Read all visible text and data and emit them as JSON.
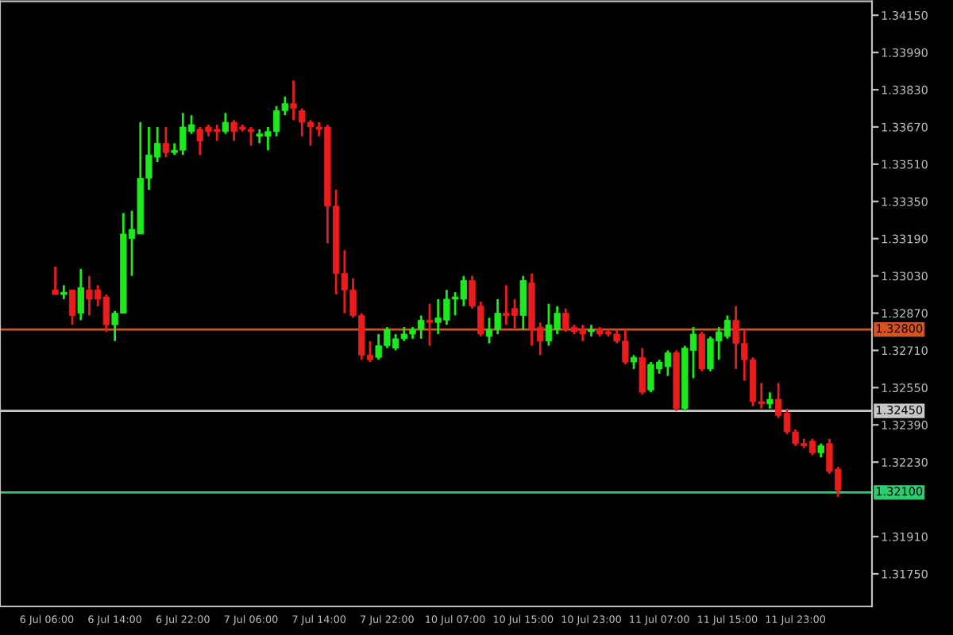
{
  "chart_data": {
    "type": "candlestick",
    "categories": [
      "6 Jul 06:00",
      null,
      null,
      null,
      null,
      null,
      null,
      null,
      "6 Jul 14:00",
      null,
      null,
      null,
      null,
      null,
      null,
      null,
      "6 Jul 22:00",
      null,
      null,
      null,
      null,
      null,
      null,
      null,
      "7 Jul 06:00",
      null,
      null,
      null,
      null,
      null,
      null,
      null,
      "7 Jul 14:00",
      null,
      null,
      null,
      null,
      null,
      null,
      null,
      "7 Jul 22:00",
      null,
      null,
      null,
      null,
      null,
      null,
      null,
      "10 Jul 07:00",
      null,
      null,
      null,
      null,
      null,
      null,
      null,
      "10 Jul 15:00",
      null,
      null,
      null,
      null,
      null,
      null,
      null,
      "10 Jul 23:00",
      null,
      null,
      null,
      null,
      null,
      null,
      null,
      "11 Jul 07:00",
      null,
      null,
      null,
      null,
      null,
      null,
      null,
      "11 Jul 15:00",
      null,
      null,
      null,
      null,
      null,
      null,
      null,
      "11 Jul 23:00",
      null,
      null,
      null,
      null,
      null
    ],
    "ohlc": [
      null,
      [
        1.3297,
        1.3307,
        1.3295,
        1.3295
      ],
      [
        1.3295,
        1.3299,
        1.3293,
        1.3296
      ],
      [
        1.3297,
        1.3297,
        1.3282,
        1.3286
      ],
      [
        1.3287,
        1.3306,
        1.3284,
        1.3298
      ],
      [
        1.3297,
        1.3303,
        1.3286,
        1.3293
      ],
      [
        1.3297,
        1.3299,
        1.329,
        1.3293
      ],
      [
        1.3294,
        1.3295,
        1.3279,
        1.3282
      ],
      [
        1.3282,
        1.3288,
        1.3275,
        1.3287
      ],
      [
        1.3287,
        1.333,
        1.3287,
        1.3321
      ],
      [
        1.3319,
        1.3331,
        1.3303,
        1.3323
      ],
      [
        1.3321,
        1.3369,
        1.3321,
        1.3345
      ],
      [
        1.3345,
        1.3367,
        1.334,
        1.3355
      ],
      [
        1.3354,
        1.3367,
        1.3352,
        1.336
      ],
      [
        1.336,
        1.3367,
        1.3354,
        1.3356
      ],
      [
        1.3356,
        1.336,
        1.3355,
        1.3357
      ],
      [
        1.3357,
        1.3373,
        1.3355,
        1.3367
      ],
      [
        1.3365,
        1.3372,
        1.3364,
        1.3368
      ],
      [
        1.3366,
        1.3367,
        1.3355,
        1.3361
      ],
      [
        1.3367,
        1.3368,
        1.3363,
        1.3365
      ],
      [
        1.3366,
        1.3368,
        1.3361,
        1.3365
      ],
      [
        1.3365,
        1.3373,
        1.3364,
        1.3369
      ],
      [
        1.3369,
        1.337,
        1.3361,
        1.3365
      ],
      [
        1.3367,
        1.3368,
        1.3365,
        1.3366
      ],
      [
        1.3366,
        1.3367,
        1.3359,
        1.3365
      ],
      [
        1.3363,
        1.3366,
        1.336,
        1.3364
      ],
      [
        1.3363,
        1.3367,
        1.3357,
        1.3365
      ],
      [
        1.3365,
        1.3376,
        1.3363,
        1.3374
      ],
      [
        1.3374,
        1.338,
        1.3372,
        1.3377
      ],
      [
        1.3377,
        1.3387,
        1.337,
        1.3375
      ],
      [
        1.3374,
        1.3375,
        1.3363,
        1.3369
      ],
      [
        1.3369,
        1.337,
        1.3359,
        1.3367
      ],
      [
        1.3367,
        1.3369,
        1.3363,
        1.3366
      ],
      [
        1.3367,
        1.3368,
        1.3317,
        1.3333
      ],
      [
        1.3333,
        1.334,
        1.3295,
        1.3304
      ],
      [
        1.3304,
        1.3314,
        1.3287,
        1.3297
      ],
      [
        1.3297,
        1.3302,
        1.3285,
        1.3286
      ],
      [
        1.3286,
        1.3287,
        1.3267,
        1.3269
      ],
      [
        1.3269,
        1.3275,
        1.3266,
        1.3267
      ],
      [
        1.3268,
        1.3278,
        1.3267,
        1.3273
      ],
      [
        1.3273,
        1.3281,
        1.3272,
        1.328
      ],
      [
        1.3272,
        1.3278,
        1.3271,
        1.3276
      ],
      [
        1.3276,
        1.3281,
        1.3275,
        1.3278
      ],
      [
        1.3278,
        1.3281,
        1.3276,
        1.328
      ],
      [
        1.328,
        1.3286,
        1.3276,
        1.3284
      ],
      [
        1.3284,
        1.3291,
        1.3273,
        1.3283
      ],
      [
        1.3283,
        1.3293,
        1.3278,
        1.3285
      ],
      [
        1.3284,
        1.3297,
        1.3282,
        1.3293
      ],
      [
        1.3293,
        1.3296,
        1.3286,
        1.3294
      ],
      [
        1.3293,
        1.3303,
        1.329,
        1.3301
      ],
      [
        1.3301,
        1.3303,
        1.3289,
        1.329
      ],
      [
        1.329,
        1.3292,
        1.3277,
        1.3278
      ],
      [
        1.3277,
        1.3285,
        1.3274,
        1.328
      ],
      [
        1.328,
        1.3293,
        1.3278,
        1.3287
      ],
      [
        1.3287,
        1.3299,
        1.3282,
        1.3286
      ],
      [
        1.3289,
        1.3293,
        1.328,
        1.3286
      ],
      [
        1.3286,
        1.3303,
        1.328,
        1.3301
      ],
      [
        1.33,
        1.3304,
        1.3273,
        1.328
      ],
      [
        1.3281,
        1.3283,
        1.3269,
        1.3275
      ],
      [
        1.3275,
        1.3291,
        1.3273,
        1.3282
      ],
      [
        1.328,
        1.329,
        1.3278,
        1.3287
      ],
      [
        1.3287,
        1.3289,
        1.3279,
        1.328
      ],
      [
        1.3281,
        1.3282,
        1.3278,
        1.3279
      ],
      [
        1.328,
        1.3282,
        1.3275,
        1.3278
      ],
      [
        1.3279,
        1.3282,
        1.3277,
        1.328
      ],
      [
        1.328,
        1.3281,
        1.3277,
        1.3278
      ],
      [
        1.3279,
        1.328,
        1.3277,
        1.3278
      ],
      [
        1.3278,
        1.328,
        1.3274,
        1.3275
      ],
      [
        1.3275,
        1.328,
        1.3265,
        1.3266
      ],
      [
        1.3266,
        1.3269,
        1.3263,
        1.3268
      ],
      [
        1.3268,
        1.3272,
        1.3252,
        1.3253
      ],
      [
        1.3254,
        1.3266,
        1.3253,
        1.3265
      ],
      [
        1.3263,
        1.3267,
        1.3261,
        1.3266
      ],
      [
        1.3264,
        1.3271,
        1.326,
        1.327
      ],
      [
        1.327,
        1.3271,
        1.3245,
        1.3246
      ],
      [
        1.3246,
        1.3273,
        1.3245,
        1.3272
      ],
      [
        1.3271,
        1.3281,
        1.3259,
        1.3278
      ],
      [
        1.3278,
        1.3279,
        1.3262,
        1.3263
      ],
      [
        1.3263,
        1.3277,
        1.3262,
        1.3276
      ],
      [
        1.3275,
        1.3281,
        1.3267,
        1.3279
      ],
      [
        1.3277,
        1.3286,
        1.3276,
        1.3284
      ],
      [
        1.3284,
        1.329,
        1.3263,
        1.3274
      ],
      [
        1.3274,
        1.328,
        1.3258,
        1.3267
      ],
      [
        1.3267,
        1.3268,
        1.3247,
        1.3249
      ],
      [
        1.3249,
        1.3257,
        1.3246,
        1.3248
      ],
      [
        1.3248,
        1.3253,
        1.3246,
        1.325
      ],
      [
        1.325,
        1.3257,
        1.3242,
        1.3243
      ],
      [
        1.3244,
        1.3246,
        1.3235,
        1.3236
      ],
      [
        1.3236,
        1.3237,
        1.323,
        1.3231
      ],
      [
        1.3231,
        1.3233,
        1.3229,
        1.323
      ],
      [
        1.3232,
        1.3233,
        1.3226,
        1.3227
      ],
      [
        1.3227,
        1.3231,
        1.3225,
        1.323
      ],
      [
        1.3231,
        1.3233,
        1.3218,
        1.3219
      ],
      [
        1.322,
        1.3221,
        1.3208,
        1.3211
      ]
    ],
    "colors": [
      null,
      "#ea1c1c",
      "#1ee81e",
      "#ea1c1c",
      "#1ee81e",
      "#ea1c1c",
      "#ea1c1c",
      "#ea1c1c",
      "#1ee81e",
      "#1ee81e",
      "#1ee81e",
      "#1ee81e",
      "#1ee81e",
      "#1ee81e",
      "#ea1c1c",
      "#1ee81e",
      "#1ee81e",
      "#1ee81e",
      "#ea1c1c",
      "#ea1c1c",
      "#ea1c1c",
      "#1ee81e",
      "#ea1c1c",
      "#ea1c1c",
      "#ea1c1c",
      "#1ee81e",
      "#1ee81e",
      "#1ee81e",
      "#1ee81e",
      "#ea1c1c",
      "#ea1c1c",
      "#ea1c1c",
      "#ea1c1c",
      "#ea1c1c",
      "#ea1c1c",
      "#ea1c1c",
      "#ea1c1c",
      "#ea1c1c",
      "#ea1c1c",
      "#1ee81e",
      "#1ee81e",
      "#1ee81e",
      "#1ee81e",
      "#1ee81e",
      "#1ee81e",
      "#ea1c1c",
      "#1ee81e",
      "#1ee81e",
      "#1ee81e",
      "#1ee81e",
      "#ea1c1c",
      "#ea1c1c",
      "#1ee81e",
      "#1ee81e",
      "#ea1c1c",
      "#ea1c1c",
      "#1ee81e",
      "#ea1c1c",
      "#ea1c1c",
      "#1ee81e",
      "#1ee81e",
      "#ea1c1c",
      "#ea1c1c",
      "#ea1c1c",
      "#1ee81e",
      "#ea1c1c",
      "#ea1c1c",
      "#ea1c1c",
      "#ea1c1c",
      "#1ee81e",
      "#ea1c1c",
      "#1ee81e",
      "#1ee81e",
      "#1ee81e",
      "#ea1c1c",
      "#1ee81e",
      "#1ee81e",
      "#ea1c1c",
      "#1ee81e",
      "#1ee81e",
      "#1ee81e",
      "#ea1c1c",
      "#ea1c1c",
      "#ea1c1c",
      "#ea1c1c",
      "#1ee81e",
      "#ea1c1c",
      "#ea1c1c",
      "#ea1c1c",
      "#ea1c1c",
      "#ea1c1c",
      "#1ee81e",
      "#ea1c1c",
      "#ea1c1c"
    ],
    "ylim": [
      1.3161,
      1.3421
    ],
    "yticks": [
      {
        "value": 1.3175,
        "label": "1.31750"
      },
      {
        "value": 1.3191,
        "label": "1.31910"
      },
      {
        "value": 1.3223,
        "label": "1.32230"
      },
      {
        "value": 1.3239,
        "label": "1.32390"
      },
      {
        "value": 1.3255,
        "label": "1.32550"
      },
      {
        "value": 1.3271,
        "label": "1.32710"
      },
      {
        "value": 1.3287,
        "label": "1.32870"
      },
      {
        "value": 1.3303,
        "label": "1.33030"
      },
      {
        "value": 1.3319,
        "label": "1.33190"
      },
      {
        "value": 1.3335,
        "label": "1.33350"
      },
      {
        "value": 1.3351,
        "label": "1.33510"
      },
      {
        "value": 1.3367,
        "label": "1.33670"
      },
      {
        "value": 1.3383,
        "label": "1.33830"
      },
      {
        "value": 1.3399,
        "label": "1.33990"
      },
      {
        "value": 1.3415,
        "label": "1.34150"
      }
    ],
    "ref_lines": [
      {
        "axis": "y",
        "value": 1.328,
        "label": "1.32800",
        "color": "#d9531e"
      },
      {
        "axis": "y",
        "value": 1.3245,
        "label": "1.32450",
        "color": "#c8c8c8"
      },
      {
        "axis": "y",
        "value": 1.321,
        "label": "1.32100",
        "color": "#2ecc71"
      }
    ],
    "grid": false,
    "legend": false
  }
}
